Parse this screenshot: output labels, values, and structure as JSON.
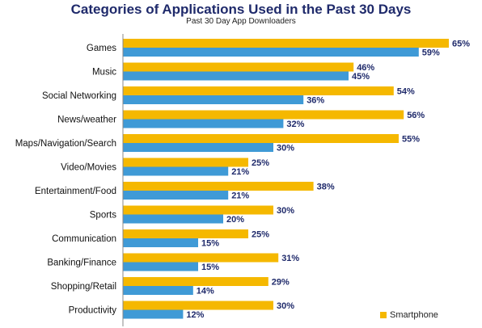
{
  "chart_data": {
    "type": "bar",
    "orientation": "horizontal",
    "title": "Categories of Applications Used in the Past 30 Days",
    "subtitle": "Past 30 Day App Downloaders",
    "categories": [
      "Games",
      "Music",
      "Social Networking",
      "News/weather",
      "Maps/Navigation/Search",
      "Video/Movies",
      "Entertainment/Food",
      "Sports",
      "Communication",
      "Banking/Finance",
      "Shopping/Retail",
      "Productivity"
    ],
    "series": [
      {
        "name": "Smartphone",
        "color": "#f5b800",
        "values": [
          65,
          46,
          54,
          56,
          55,
          25,
          38,
          30,
          25,
          31,
          29,
          30
        ]
      },
      {
        "color": "#3f9ad6",
        "values": [
          59,
          45,
          36,
          32,
          30,
          21,
          21,
          20,
          15,
          15,
          14,
          12
        ]
      }
    ],
    "value_suffix": "%",
    "xlim": [
      0,
      66
    ],
    "legend_position": "bottom-right"
  }
}
